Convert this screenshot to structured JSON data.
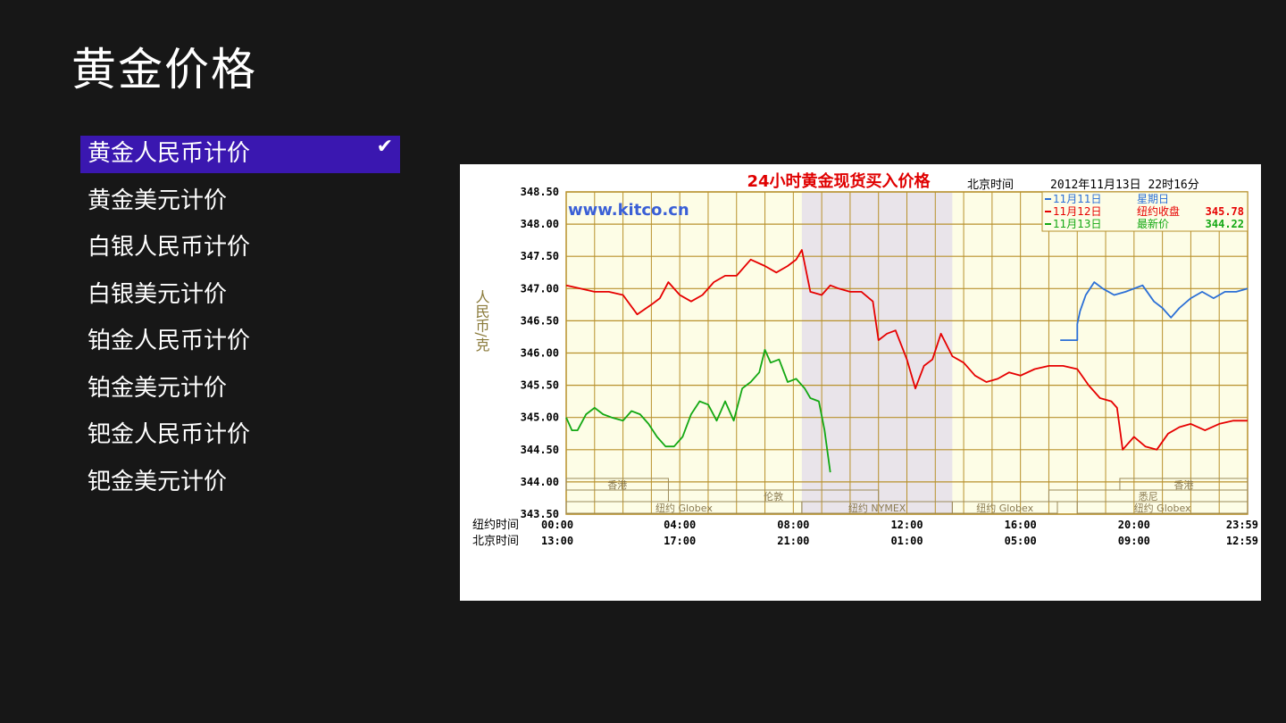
{
  "page": {
    "title": "黄金价格"
  },
  "menu": {
    "items": [
      {
        "label": "黄金人民币计价",
        "selected": true
      },
      {
        "label": "黄金美元计价"
      },
      {
        "label": "白银人民币计价"
      },
      {
        "label": "白银美元计价"
      },
      {
        "label": "铂金人民币计价"
      },
      {
        "label": "铂金美元计价"
      },
      {
        "label": "钯金人民币计价"
      },
      {
        "label": "钯金美元计价"
      }
    ]
  },
  "chart_data": {
    "type": "line",
    "title": "24小时黄金现货买入价格",
    "timestamp_label": "北京时间",
    "timestamp": "2012年11月13日 22时16分",
    "watermark": "www.kitco.cn",
    "ylabel": "人民币/克",
    "ylim": [
      343.5,
      348.5
    ],
    "y_ticks": [
      "348.50",
      "348.00",
      "347.50",
      "347.00",
      "346.50",
      "346.00",
      "345.50",
      "345.00",
      "344.50",
      "344.00",
      "343.50"
    ],
    "x_range_hours": [
      0,
      24
    ],
    "x_rows": [
      {
        "label": "纽约时间",
        "ticks": [
          "00:00",
          "04:00",
          "08:00",
          "12:00",
          "16:00",
          "20:00",
          "23:59"
        ]
      },
      {
        "label": "北京时间",
        "ticks": [
          "13:00",
          "17:00",
          "21:00",
          "01:00",
          "05:00",
          "09:00",
          "12:59"
        ]
      }
    ],
    "shaded_range_hours": [
      8.3,
      13.6
    ],
    "sessions": [
      {
        "label": "香港",
        "row": 0,
        "start": 0,
        "end": 3.6
      },
      {
        "label": "伦敦",
        "row": 1,
        "start": 3.6,
        "end": 11.0
      },
      {
        "label": "纽约 Globex",
        "row": 2,
        "start": 0,
        "end": 8.3
      },
      {
        "label": "纽约 NYMEX",
        "row": 2,
        "start": 8.3,
        "end": 13.6
      },
      {
        "label": "纽约 Globex",
        "row": 2,
        "start": 13.6,
        "end": 17.3
      },
      {
        "label": "悉尼",
        "row": 1,
        "start": 17.0,
        "end": 24
      },
      {
        "label": "香港",
        "row": 0,
        "start": 19.5,
        "end": 24
      },
      {
        "label": "纽约 Globex",
        "row": 2,
        "start": 18.0,
        "end": 24
      }
    ],
    "legend": [
      {
        "name": "11月11日",
        "extra": "星期日",
        "value": "",
        "color": "#2b6fd6"
      },
      {
        "name": "11月12日",
        "extra": "纽约收盘",
        "value": "345.78",
        "color": "#e60000"
      },
      {
        "name": "11月13日",
        "extra": "最新价",
        "value": "344.22",
        "color": "#13a813"
      }
    ],
    "series": [
      {
        "name": "11月11日",
        "color": "#2b6fd6",
        "x": [
          17.4,
          18.0,
          18.0,
          18.1,
          18.3,
          18.6,
          18.9,
          19.3,
          19.7,
          20.0,
          20.3,
          20.7,
          21.0,
          21.3,
          21.6,
          22.0,
          22.4,
          22.8,
          23.2,
          23.6,
          24.0
        ],
        "y": [
          346.2,
          346.2,
          346.45,
          346.65,
          346.9,
          347.1,
          347.0,
          346.9,
          346.95,
          347.0,
          347.05,
          346.8,
          346.7,
          346.55,
          346.7,
          346.85,
          346.95,
          346.85,
          346.95,
          346.95,
          347.0
        ]
      },
      {
        "name": "11月12日",
        "color": "#e60000",
        "x": [
          0,
          0.5,
          1.0,
          1.5,
          2.0,
          2.5,
          3.0,
          3.3,
          3.6,
          4.0,
          4.4,
          4.8,
          5.2,
          5.6,
          6.0,
          6.5,
          7.0,
          7.4,
          7.8,
          8.1,
          8.3,
          8.6,
          9.0,
          9.3,
          9.6,
          10.0,
          10.4,
          10.8,
          11.0,
          11.3,
          11.6,
          12.0,
          12.3,
          12.6,
          12.9,
          13.2,
          13.6,
          14.0,
          14.4,
          14.8,
          15.2,
          15.6,
          16.0,
          16.5,
          17.0,
          17.5,
          18.0,
          18.4,
          18.8,
          19.2,
          19.4,
          19.6,
          20.0,
          20.4,
          20.8,
          21.2,
          21.6,
          22.0,
          22.5,
          23.0,
          23.5,
          24.0
        ],
        "y": [
          347.05,
          347.0,
          346.95,
          346.95,
          346.9,
          346.6,
          346.75,
          346.85,
          347.1,
          346.9,
          346.8,
          346.9,
          347.1,
          347.2,
          347.2,
          347.45,
          347.35,
          347.25,
          347.35,
          347.45,
          347.6,
          346.95,
          346.9,
          347.05,
          347.0,
          346.95,
          346.95,
          346.8,
          346.2,
          346.3,
          346.35,
          345.9,
          345.45,
          345.8,
          345.9,
          346.3,
          345.95,
          345.85,
          345.65,
          345.55,
          345.6,
          345.7,
          345.65,
          345.75,
          345.8,
          345.8,
          345.75,
          345.5,
          345.3,
          345.25,
          345.15,
          344.5,
          344.7,
          344.55,
          344.5,
          344.75,
          344.85,
          344.9,
          344.8,
          344.9,
          344.95,
          344.95
        ]
      },
      {
        "name": "11月13日",
        "color": "#13a813",
        "x": [
          0,
          0.2,
          0.4,
          0.7,
          1.0,
          1.3,
          1.6,
          2.0,
          2.3,
          2.6,
          2.9,
          3.2,
          3.5,
          3.8,
          4.1,
          4.4,
          4.7,
          5.0,
          5.3,
          5.6,
          5.9,
          6.2,
          6.5,
          6.8,
          7.0,
          7.2,
          7.5,
          7.8,
          8.1,
          8.4,
          8.6,
          8.9,
          9.1,
          9.3
        ],
        "y": [
          345.0,
          344.8,
          344.8,
          345.05,
          345.15,
          345.05,
          345.0,
          344.95,
          345.1,
          345.05,
          344.9,
          344.7,
          344.55,
          344.55,
          344.7,
          345.05,
          345.25,
          345.2,
          344.95,
          345.25,
          344.95,
          345.45,
          345.55,
          345.7,
          346.05,
          345.85,
          345.9,
          345.55,
          345.6,
          345.45,
          345.3,
          345.25,
          344.8,
          344.15
        ]
      }
    ]
  }
}
